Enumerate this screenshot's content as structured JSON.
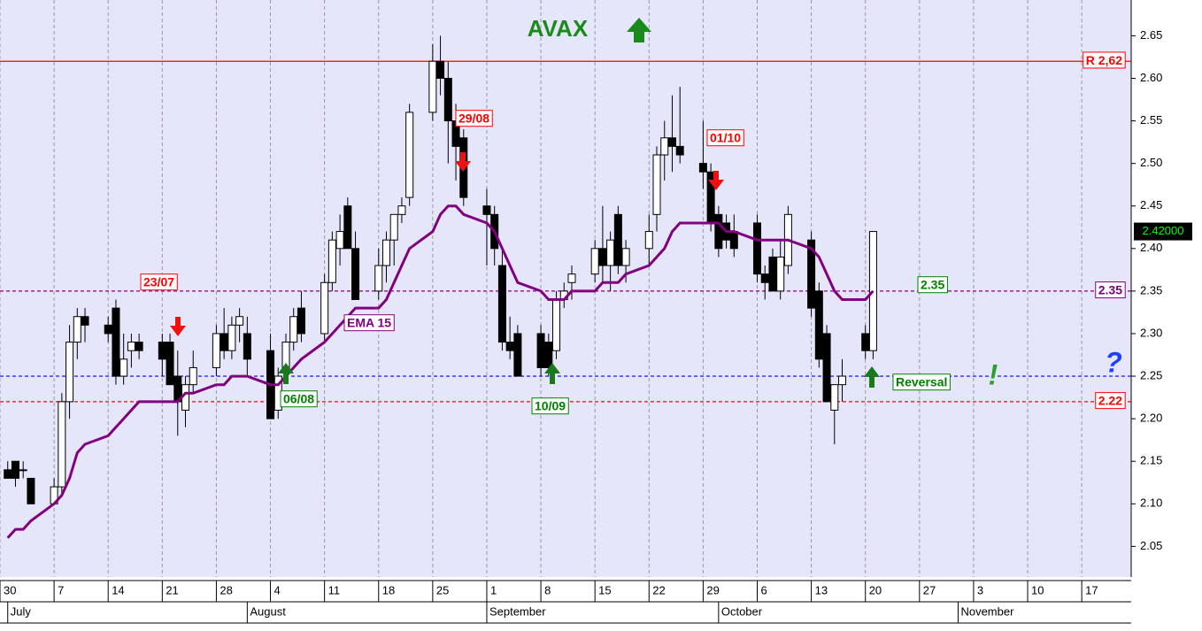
{
  "chart_data": {
    "type": "candlestick",
    "title": "AVAX",
    "x": [
      182,
      183,
      184,
      185,
      188,
      189,
      190,
      191,
      192,
      195,
      196,
      197,
      198,
      199,
      202,
      203,
      204,
      205,
      206,
      209,
      210,
      211,
      212,
      213,
      216,
      217,
      218,
      219,
      220,
      223,
      224,
      225,
      226,
      227,
      230,
      231,
      232,
      233,
      234,
      237,
      238,
      239,
      240,
      241,
      244,
      245,
      246,
      247,
      248,
      251,
      252,
      253,
      254,
      255,
      258,
      259,
      260,
      261,
      262,
      265,
      266,
      267,
      268,
      269,
      272,
      273,
      274,
      275,
      276,
      279,
      280,
      281,
      282,
      283,
      286,
      287,
      288,
      289,
      290,
      293,
      294
    ],
    "open": [
      2.14,
      2.15,
      2.14,
      2.13,
      2.1,
      2.12,
      2.22,
      2.29,
      2.32,
      2.31,
      2.33,
      2.25,
      2.28,
      2.29,
      2.29,
      2.29,
      2.25,
      2.21,
      2.24,
      2.26,
      2.3,
      2.28,
      2.31,
      2.3,
      2.28,
      2.21,
      2.26,
      2.29,
      2.33,
      2.3,
      2.36,
      2.4,
      2.45,
      2.4,
      2.35,
      2.38,
      2.41,
      2.44,
      2.46,
      2.56,
      2.62,
      2.6,
      2.55,
      2.53,
      2.45,
      2.44,
      2.38,
      2.29,
      2.3,
      2.3,
      2.29,
      2.28,
      2.34,
      2.36,
      2.37,
      2.4,
      2.38,
      2.44,
      2.38,
      2.4,
      2.44,
      2.51,
      2.53,
      2.52,
      2.5,
      2.49,
      2.44,
      2.43,
      2.42,
      2.43,
      2.37,
      2.39,
      2.35,
      2.38,
      2.41,
      2.35,
      2.3,
      2.21,
      2.24,
      2.3,
      2.28
    ],
    "high": [
      2.15,
      2.15,
      2.15,
      2.13,
      2.13,
      2.23,
      2.31,
      2.33,
      2.33,
      2.32,
      2.34,
      2.3,
      2.3,
      2.3,
      2.3,
      2.3,
      2.28,
      2.25,
      2.28,
      2.31,
      2.33,
      2.32,
      2.33,
      2.32,
      2.3,
      2.26,
      2.3,
      2.33,
      2.35,
      2.37,
      2.42,
      2.44,
      2.46,
      2.42,
      2.4,
      2.42,
      2.44,
      2.46,
      2.57,
      2.64,
      2.65,
      2.62,
      2.57,
      2.54,
      2.47,
      2.45,
      2.4,
      2.32,
      2.31,
      2.31,
      2.3,
      2.35,
      2.36,
      2.38,
      2.41,
      2.45,
      2.42,
      2.45,
      2.41,
      2.44,
      2.52,
      2.55,
      2.58,
      2.59,
      2.55,
      2.5,
      2.45,
      2.44,
      2.44,
      2.44,
      2.38,
      2.4,
      2.41,
      2.45,
      2.42,
      2.36,
      2.31,
      2.24,
      2.27,
      2.31,
      2.42
    ],
    "low": [
      2.13,
      2.12,
      2.13,
      2.1,
      2.1,
      2.11,
      2.2,
      2.27,
      2.29,
      2.29,
      2.24,
      2.24,
      2.26,
      2.27,
      2.25,
      2.24,
      2.18,
      2.19,
      2.23,
      2.25,
      2.27,
      2.27,
      2.29,
      2.25,
      2.2,
      2.2,
      2.25,
      2.28,
      2.29,
      2.29,
      2.35,
      2.38,
      2.4,
      2.34,
      2.34,
      2.36,
      2.38,
      2.43,
      2.45,
      2.55,
      2.58,
      2.5,
      2.48,
      2.45,
      2.38,
      2.38,
      2.28,
      2.27,
      2.25,
      2.25,
      2.25,
      2.27,
      2.33,
      2.34,
      2.36,
      2.36,
      2.35,
      2.37,
      2.36,
      2.38,
      2.42,
      2.48,
      2.49,
      2.5,
      2.47,
      2.42,
      2.39,
      2.4,
      2.39,
      2.36,
      2.34,
      2.35,
      2.34,
      2.37,
      2.32,
      2.26,
      2.22,
      2.17,
      2.22,
      2.27,
      2.27
    ],
    "close": [
      2.13,
      2.13,
      2.14,
      2.1,
      2.12,
      2.22,
      2.29,
      2.32,
      2.31,
      2.3,
      2.25,
      2.27,
      2.29,
      2.28,
      2.27,
      2.24,
      2.22,
      2.24,
      2.26,
      2.3,
      2.28,
      2.31,
      2.32,
      2.27,
      2.2,
      2.25,
      2.29,
      2.32,
      2.3,
      2.36,
      2.41,
      2.42,
      2.4,
      2.34,
      2.38,
      2.41,
      2.44,
      2.45,
      2.56,
      2.62,
      2.6,
      2.55,
      2.52,
      2.46,
      2.44,
      2.4,
      2.29,
      2.28,
      2.25,
      2.26,
      2.26,
      2.34,
      2.35,
      2.37,
      2.4,
      2.38,
      2.41,
      2.38,
      2.4,
      2.42,
      2.51,
      2.53,
      2.52,
      2.51,
      2.49,
      2.43,
      2.4,
      2.41,
      2.4,
      2.37,
      2.36,
      2.35,
      2.39,
      2.44,
      2.33,
      2.27,
      2.22,
      2.24,
      2.25,
      2.28,
      2.42
    ],
    "up_color": "#ffffff",
    "down_color": "#000000",
    "series": [
      {
        "name": "EMA 15",
        "color": "#800080",
        "values": [
          2.06,
          2.07,
          2.07,
          2.08,
          2.1,
          2.11,
          2.13,
          2.16,
          2.17,
          2.18,
          2.19,
          2.2,
          2.21,
          2.22,
          2.22,
          2.22,
          2.22,
          2.23,
          2.23,
          2.24,
          2.24,
          2.25,
          2.25,
          2.25,
          2.24,
          2.24,
          2.25,
          2.26,
          2.27,
          2.29,
          2.3,
          2.31,
          2.32,
          2.33,
          2.33,
          2.34,
          2.36,
          2.38,
          2.4,
          2.42,
          2.44,
          2.45,
          2.45,
          2.44,
          2.43,
          2.42,
          2.4,
          2.38,
          2.36,
          2.35,
          2.34,
          2.34,
          2.34,
          2.35,
          2.35,
          2.36,
          2.36,
          2.36,
          2.37,
          2.38,
          2.39,
          2.4,
          2.42,
          2.43,
          2.43,
          2.43,
          2.43,
          2.42,
          2.42,
          2.41,
          2.41,
          2.41,
          2.41,
          2.41,
          2.4,
          2.39,
          2.37,
          2.35,
          2.34,
          2.34,
          2.35
        ]
      }
    ],
    "xlim": [
      181,
      327.4
    ],
    "ylim": [
      2.014,
      2.692
    ],
    "yticks": [
      2.05,
      {
        "value": 2.1,
        "label": "2.10"
      },
      2.15,
      {
        "value": 2.2,
        "label": "2.20"
      },
      2.25,
      {
        "value": 2.3,
        "label": "2.30"
      },
      2.35,
      {
        "value": 2.4,
        "label": "2.40"
      },
      2.45,
      {
        "value": 2.5,
        "label": "2.50"
      },
      2.55,
      {
        "value": 2.6,
        "label": "2.60"
      },
      2.65
    ],
    "xticks": [
      {
        "value": 181,
        "label": "30"
      },
      {
        "value": 188,
        "label": "7"
      },
      {
        "value": 195,
        "label": "14"
      },
      {
        "value": 202,
        "label": "21"
      },
      {
        "value": 209,
        "label": "28"
      },
      {
        "value": 216,
        "label": "4"
      },
      {
        "value": 223,
        "label": "11"
      },
      {
        "value": 230,
        "label": "18"
      },
      {
        "value": 237,
        "label": "25"
      },
      {
        "value": 244,
        "label": "1"
      },
      {
        "value": 251,
        "label": "8"
      },
      {
        "value": 258,
        "label": "15"
      },
      {
        "value": 265,
        "label": "22"
      },
      {
        "value": 272,
        "label": "29"
      },
      {
        "value": 279,
        "label": "6"
      },
      {
        "value": 286,
        "label": "13"
      },
      {
        "value": 293,
        "label": "20"
      },
      {
        "value": 300,
        "label": "27"
      },
      {
        "value": 307,
        "label": "3"
      },
      {
        "value": 314,
        "label": "10"
      },
      {
        "value": 321,
        "label": "17"
      }
    ],
    "month_ticks": [
      {
        "value": 182,
        "label": "July"
      },
      {
        "value": 213,
        "label": "August"
      },
      {
        "value": 244,
        "label": "September"
      },
      {
        "value": 274,
        "label": "October"
      },
      {
        "value": 305,
        "label": "November"
      }
    ],
    "grid": true,
    "hlines": [
      {
        "value": 2.62,
        "label": "R 2,62",
        "color": "#ff0000",
        "style": "solid"
      },
      {
        "value": 2.35,
        "label": "2.35",
        "color": "#800080",
        "style": "dashed"
      },
      {
        "value": 2.25,
        "color": "#0000ff",
        "style": "dashed"
      },
      {
        "value": 2.22,
        "label": "2.22",
        "color": "#ff0000",
        "style": "dashed"
      }
    ],
    "last_price": {
      "value": 2.42,
      "label": "2.42000"
    },
    "annotations": [
      {
        "label": "23/07",
        "color": "#ff0000"
      },
      {
        "label": "06/08",
        "color": "#008000"
      },
      {
        "label": "29/08",
        "color": "#ff0000"
      },
      {
        "label": "10/09",
        "color": "#008000"
      },
      {
        "label": "01/10",
        "color": "#ff0000"
      },
      {
        "label": "2.35",
        "color": "#008000"
      },
      {
        "label": "Reversal",
        "color": "#008000"
      }
    ],
    "marks": [
      {
        "label": "!",
        "color": "#2ca02c"
      },
      {
        "label": "?",
        "color": "#1f3fff"
      }
    ]
  }
}
